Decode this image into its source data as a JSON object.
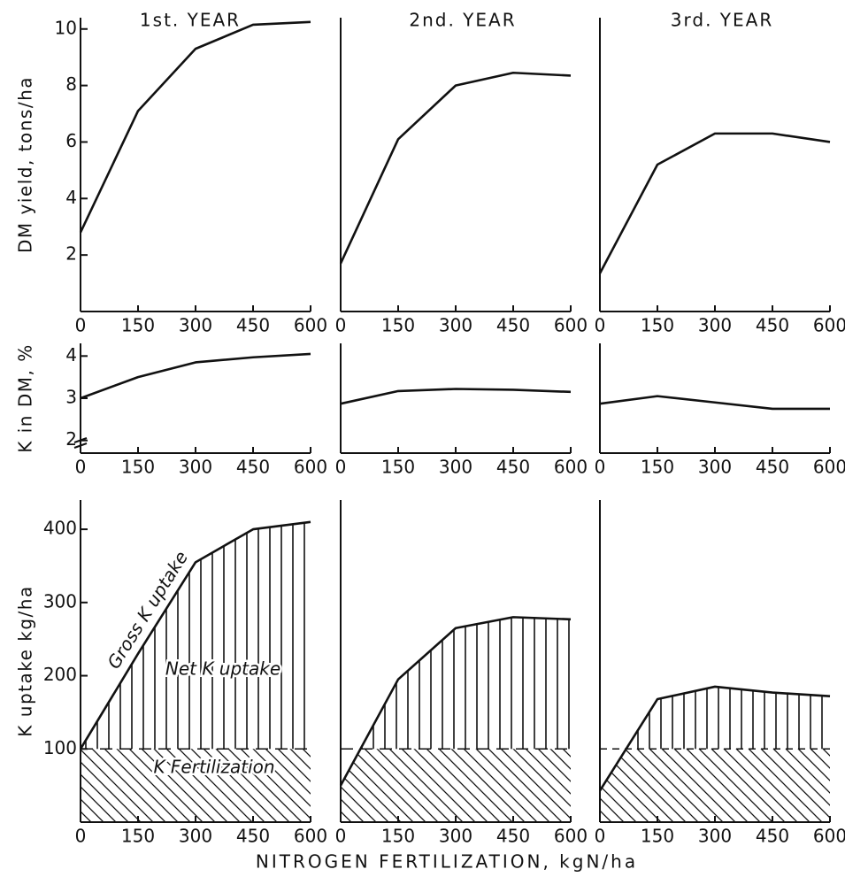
{
  "chart_data": [
    {
      "type": "line",
      "title": "1st. YEAR",
      "ylabel": "DM yield, tons/ha",
      "x": [
        0,
        150,
        300,
        450,
        600
      ],
      "values": [
        2.8,
        7.1,
        9.3,
        10.15,
        10.25
      ],
      "color": "#111111",
      "xlim": [
        0,
        600
      ],
      "ylim": [
        0,
        10.4
      ],
      "xticks": [
        0,
        150,
        300,
        450,
        600
      ],
      "yticks": [
        2,
        4,
        6,
        8,
        10
      ]
    },
    {
      "type": "line",
      "title": "2nd. YEAR",
      "x": [
        0,
        150,
        300,
        450,
        600
      ],
      "values": [
        1.7,
        6.1,
        8.0,
        8.45,
        8.35
      ],
      "color": "#111111",
      "xlim": [
        0,
        600
      ],
      "ylim": [
        0,
        10.4
      ],
      "xticks": [
        0,
        150,
        300,
        450,
        600
      ]
    },
    {
      "type": "line",
      "title": "3rd. YEAR",
      "x": [
        0,
        150,
        300,
        450,
        600
      ],
      "values": [
        1.35,
        5.2,
        6.3,
        6.3,
        6.0
      ],
      "color": "#111111",
      "xlim": [
        0,
        600
      ],
      "ylim": [
        0,
        10.4
      ],
      "xticks": [
        0,
        150,
        300,
        450,
        600
      ]
    },
    {
      "type": "line",
      "ylabel": "K in DM, %",
      "x": [
        0,
        150,
        300,
        450,
        600
      ],
      "values": [
        3.0,
        3.5,
        3.85,
        3.97,
        4.05
      ],
      "color": "#111111",
      "xlim": [
        0,
        600
      ],
      "ylim": [
        1.7,
        4.3
      ],
      "xticks": [
        0,
        150,
        300,
        450,
        600
      ],
      "yticks": [
        2,
        3,
        4
      ]
    },
    {
      "type": "line",
      "x": [
        0,
        150,
        300,
        450,
        600
      ],
      "values": [
        2.87,
        3.17,
        3.22,
        3.2,
        3.15
      ],
      "color": "#111111",
      "xlim": [
        0,
        600
      ],
      "ylim": [
        1.7,
        4.3
      ],
      "xticks": [
        0,
        150,
        300,
        450,
        600
      ]
    },
    {
      "type": "line",
      "x": [
        0,
        150,
        300,
        450,
        600
      ],
      "values": [
        2.87,
        3.05,
        2.9,
        2.75,
        2.75
      ],
      "color": "#111111",
      "xlim": [
        0,
        600
      ],
      "ylim": [
        1.7,
        4.3
      ],
      "xticks": [
        0,
        150,
        300,
        450,
        600
      ]
    },
    {
      "type": "area",
      "ylabel": "K uptake kg/ha",
      "annotations": [
        "Gross K uptake",
        "Net K uptake",
        "K Fertilization"
      ],
      "x": [
        0,
        150,
        300,
        450,
        600
      ],
      "values": [
        100,
        230,
        355,
        400,
        410
      ],
      "fertilization": 100,
      "color": "#111111",
      "xlim": [
        0,
        600
      ],
      "ylim": [
        0,
        440
      ],
      "xticks": [
        0,
        150,
        300,
        450,
        600
      ],
      "yticks": [
        100,
        200,
        300,
        400
      ]
    },
    {
      "type": "area",
      "xlabel": "NITROGEN FERTILIZATION, kgN/ha",
      "x": [
        0,
        150,
        300,
        450,
        600
      ],
      "values": [
        50,
        195,
        265,
        280,
        277
      ],
      "fertilization": 100,
      "color": "#111111",
      "xlim": [
        0,
        600
      ],
      "ylim": [
        0,
        440
      ],
      "xticks": [
        0,
        150,
        300,
        450,
        600
      ]
    },
    {
      "type": "area",
      "x": [
        0,
        150,
        300,
        450,
        600
      ],
      "values": [
        43,
        168,
        185,
        177,
        172
      ],
      "fertilization": 100,
      "color": "#111111",
      "xlim": [
        0,
        600
      ],
      "ylim": [
        0,
        440
      ],
      "xticks": [
        0,
        150,
        300,
        450,
        600
      ]
    }
  ]
}
